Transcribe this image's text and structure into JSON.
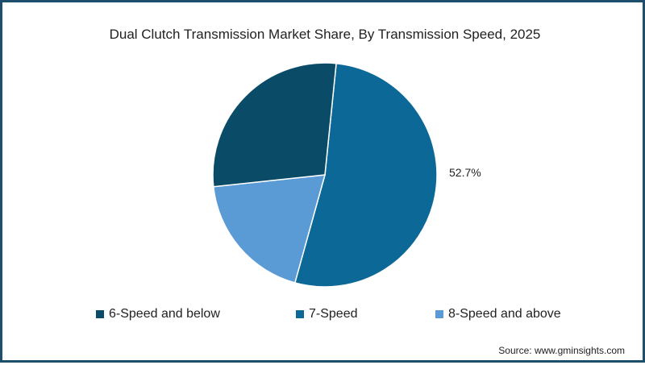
{
  "chart_data": {
    "type": "pie",
    "title": "Dual Clutch Transmission Market Share, By Transmission Speed, 2025",
    "categories": [
      "6-Speed and below",
      "7-Speed",
      "8-Speed and above"
    ],
    "values": [
      28.3,
      52.7,
      19.0
    ],
    "colors": [
      "#0a4b67",
      "#0b6897",
      "#5b9bd5"
    ],
    "data_labels": [
      {
        "category": "7-Speed",
        "text": "52.7%"
      }
    ],
    "legend_position": "bottom",
    "source": "Source: www.gminsights.com"
  },
  "title": "Dual Clutch Transmission Market Share, By Transmission Speed, 2025",
  "label_7speed": "52.7%",
  "legend": [
    {
      "label": "6-Speed and below",
      "color": "#0a4b67"
    },
    {
      "label": "7-Speed",
      "color": "#0b6897"
    },
    {
      "label": "8-Speed and above",
      "color": "#5b9bd5"
    }
  ],
  "source": "Source: www.gminsights.com",
  "frame_color": "#1d4f6c"
}
